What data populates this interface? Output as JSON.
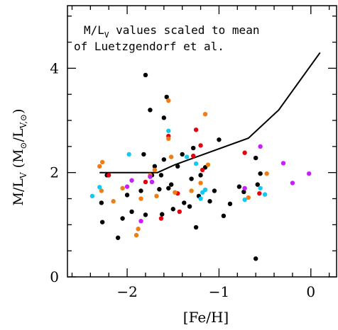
{
  "chart_data": {
    "type": "scatter",
    "annotation": {
      "line1": "M/L",
      "line1_sub": "V",
      "line1_rest": " values scaled to mean",
      "line2": "of Luetzgendorf et al."
    },
    "xlabel": "[Fe/H]",
    "ylabel": {
      "main": "M/L",
      "main_sub": "V",
      "paren_open": " (M",
      "sun": "⊙",
      "slash": "/L",
      "sub2": "V,⊙",
      "paren_close": ")"
    },
    "xlim": [
      -2.65,
      0.28
    ],
    "ylim": [
      0,
      5.2
    ],
    "x_ticks": [
      {
        "value": -2,
        "label": "−2"
      },
      {
        "value": -1,
        "label": "−1"
      },
      {
        "value": 0,
        "label": "0"
      }
    ],
    "y_ticks": [
      {
        "value": 0,
        "label": "0"
      },
      {
        "value": 2,
        "label": "2"
      },
      {
        "value": 4,
        "label": "4"
      }
    ],
    "x_minor_step": 0.2,
    "y_minor_step": 0.5,
    "colors": {
      "black": "#000000",
      "red": "#e8000b",
      "orange": "#f07d14",
      "cyan": "#14c8f0",
      "magenta": "#c81eff",
      "line": "#000000"
    },
    "model_line": {
      "x": [
        -2.3,
        -1.67,
        -1.48,
        -0.68,
        -0.35,
        0.1
      ],
      "y": [
        2.0,
        2.0,
        2.15,
        2.66,
        3.2,
        4.3
      ]
    },
    "series": [
      {
        "color": "black",
        "points": [
          [
            -2.28,
            1.42
          ],
          [
            -2.27,
            1.05
          ],
          [
            -2.05,
            1.12
          ],
          [
            -2.0,
            1.57
          ],
          [
            -1.85,
            1.65
          ],
          [
            -1.82,
            2.35
          ],
          [
            -1.8,
            3.87
          ],
          [
            -1.8,
            1.19
          ],
          [
            -1.73,
            1.95
          ],
          [
            -1.75,
            3.2
          ],
          [
            -1.63,
            1.95
          ],
          [
            -1.62,
            1.2
          ],
          [
            -1.6,
            2.25
          ],
          [
            -1.57,
            3.45
          ],
          [
            -1.55,
            1.7
          ],
          [
            -1.52,
            1.77
          ],
          [
            -1.45,
            2.12
          ],
          [
            -1.38,
            1.42
          ],
          [
            -1.32,
            1.35
          ],
          [
            -1.3,
            1.88
          ],
          [
            -1.25,
            0.95
          ],
          [
            -1.2,
            1.95
          ],
          [
            -1.15,
            2.1
          ],
          [
            -1.22,
            1.55
          ],
          [
            -1.1,
            1.45
          ],
          [
            -1.05,
            1.65
          ],
          [
            -0.95,
            1.17
          ],
          [
            -0.88,
            1.4
          ],
          [
            -0.78,
            1.73
          ],
          [
            -0.73,
            1.63
          ],
          [
            -0.6,
            2.28
          ],
          [
            -0.55,
            1.98
          ],
          [
            -0.58,
            1.77
          ],
          [
            -0.6,
            0.35
          ],
          [
            -2.22,
            1.95
          ],
          [
            -2.1,
            0.75
          ],
          [
            -1.95,
            1.25
          ],
          [
            -1.6,
            3.05
          ],
          [
            -1.0,
            2.63
          ],
          [
            -1.28,
            2.47
          ],
          [
            -1.4,
            2.35
          ],
          [
            -1.7,
            2.12
          ],
          [
            -1.5,
            1.3
          ],
          [
            -1.65,
            1.68
          ]
        ]
      },
      {
        "color": "red",
        "points": [
          [
            -2.2,
            1.95
          ],
          [
            -1.8,
            1.82
          ],
          [
            -1.63,
            1.12
          ],
          [
            -1.55,
            2.7
          ],
          [
            -1.45,
            1.6
          ],
          [
            -1.43,
            1.25
          ],
          [
            -1.28,
            2.32
          ],
          [
            -1.25,
            2.82
          ],
          [
            -1.2,
            2.52
          ],
          [
            -1.18,
            2.05
          ],
          [
            -0.72,
            2.38
          ],
          [
            -0.56,
            1.6
          ]
        ]
      },
      {
        "color": "orange",
        "points": [
          [
            -2.28,
            1.65
          ],
          [
            -2.3,
            2.12
          ],
          [
            -2.27,
            2.2
          ],
          [
            -2.15,
            1.45
          ],
          [
            -2.05,
            1.7
          ],
          [
            -1.9,
            0.8
          ],
          [
            -1.88,
            0.92
          ],
          [
            -1.85,
            1.5
          ],
          [
            -1.75,
            1.95
          ],
          [
            -1.68,
            1.55
          ],
          [
            -1.55,
            3.38
          ],
          [
            -1.55,
            2.65
          ],
          [
            -1.52,
            2.3
          ],
          [
            -1.48,
            1.62
          ],
          [
            -1.3,
            1.65
          ],
          [
            -1.2,
            1.8
          ],
          [
            -1.15,
            3.12
          ],
          [
            -1.12,
            2.15
          ],
          [
            -0.48,
            1.98
          ],
          [
            -0.68,
            1.52
          ],
          [
            -1.7,
            2.05
          ]
        ]
      },
      {
        "color": "cyan",
        "points": [
          [
            -2.38,
            1.55
          ],
          [
            -2.3,
            1.72
          ],
          [
            -1.98,
            2.35
          ],
          [
            -1.55,
            2.8
          ],
          [
            -1.35,
            2.3
          ],
          [
            -1.25,
            2.17
          ],
          [
            -1.18,
            1.62
          ],
          [
            -1.15,
            1.67
          ],
          [
            -0.55,
            1.7
          ],
          [
            -0.5,
            1.58
          ],
          [
            -0.72,
            1.48
          ],
          [
            -1.2,
            1.5
          ]
        ]
      },
      {
        "color": "magenta",
        "points": [
          [
            -2.0,
            1.73
          ],
          [
            -1.95,
            1.85
          ],
          [
            -1.75,
            1.92
          ],
          [
            -1.73,
            1.82
          ],
          [
            -1.85,
            1.07
          ],
          [
            -0.55,
            2.5
          ],
          [
            -0.3,
            2.18
          ],
          [
            -0.2,
            1.8
          ],
          [
            -0.02,
            1.98
          ],
          [
            -0.72,
            1.7
          ]
        ]
      }
    ]
  }
}
